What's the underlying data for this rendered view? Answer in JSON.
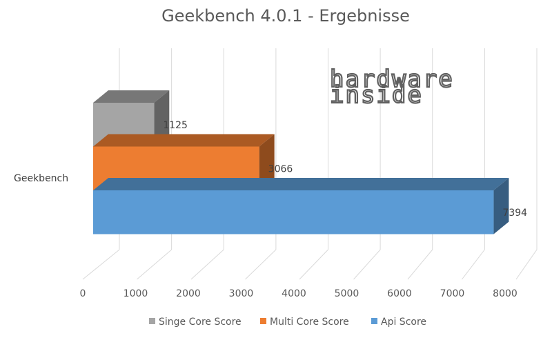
{
  "chart_data": {
    "type": "bar",
    "orientation": "horizontal",
    "style": "3d",
    "title": "Geekbench 4.0.1 - Ergebnisse",
    "categories": [
      "Geekbench"
    ],
    "series": [
      {
        "name": "Singe Core Score",
        "values": [
          1125
        ],
        "color": "#a5a5a5"
      },
      {
        "name": "Multi Core Score",
        "values": [
          3066
        ],
        "color": "#ed7d31"
      },
      {
        "name": "Api Score",
        "values": [
          7394
        ],
        "color": "#5b9bd5"
      }
    ],
    "xlim": [
      0,
      8000
    ],
    "xticks": [
      0,
      1000,
      2000,
      3000,
      4000,
      5000,
      6000,
      7000,
      8000
    ],
    "grid": true,
    "legend_position": "bottom",
    "watermark": [
      "hardware",
      "inside"
    ]
  }
}
